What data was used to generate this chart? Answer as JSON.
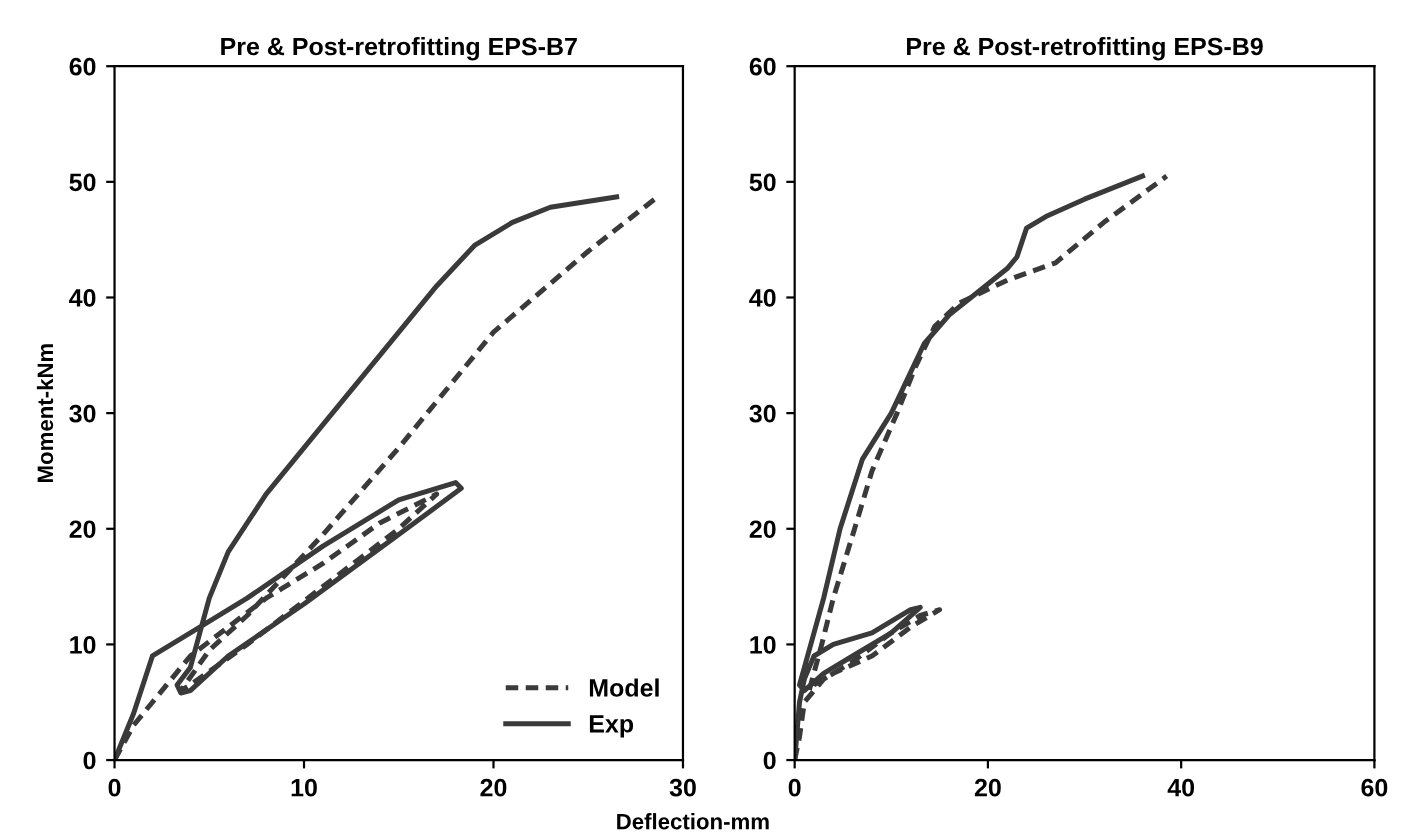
{
  "chart_data": [
    {
      "type": "line",
      "title": "Pre & Post-retrofitting EPS-B7",
      "xlabel": "Deflection-mm",
      "ylabel": "Moment-kNm",
      "xlim": [
        0,
        30
      ],
      "xticks": [
        0,
        10,
        20,
        30
      ],
      "ylim": [
        0,
        60
      ],
      "yticks": [
        0,
        10,
        20,
        30,
        40,
        50,
        60
      ],
      "grid": false,
      "legend": "bottom right",
      "series": [
        {
          "name": "Model",
          "color": "#3a3a3a",
          "line_style": "dashed",
          "x": [
            0,
            1,
            2,
            3,
            4,
            6,
            8,
            11,
            14,
            17,
            15,
            11,
            7,
            4,
            3.5,
            5,
            7,
            9,
            11,
            15,
            20,
            25,
            28.5
          ],
          "values": [
            0,
            3,
            5,
            7,
            9,
            11.5,
            14,
            17,
            20.5,
            23,
            20,
            15,
            10,
            6.5,
            6,
            9.5,
            12.5,
            16,
            19.5,
            27,
            37,
            44,
            48.5
          ]
        },
        {
          "name": "Exp",
          "color": "#3a3a3a",
          "line_style": "solid",
          "x": [
            0,
            1,
            2,
            3,
            4,
            7,
            11,
            15,
            18,
            18.3,
            15,
            10,
            6,
            4,
            3.5,
            3.3,
            4,
            4.5,
            5,
            6,
            8,
            11,
            14,
            17,
            19,
            21,
            23,
            26.5
          ],
          "values": [
            0,
            4,
            9,
            10,
            11,
            14,
            18.5,
            22.5,
            24,
            23.5,
            19.5,
            13.5,
            9,
            6,
            5.8,
            6.5,
            8,
            11,
            14,
            18,
            23,
            29,
            35,
            41,
            44.5,
            46.5,
            47.8,
            48.7
          ]
        }
      ]
    },
    {
      "type": "line",
      "title": "Pre & Post-retrofitting EPS-B9",
      "xlim": [
        0,
        60
      ],
      "xticks": [
        0,
        20,
        40,
        60
      ],
      "ylim": [
        0,
        60
      ],
      "yticks": [
        0,
        10,
        20,
        30,
        40,
        50,
        60
      ],
      "grid": false,
      "legend": false,
      "series": [
        {
          "color": "#3a3a3a",
          "line_style": "dashed",
          "x": [
            0,
            0.5,
            1,
            3,
            6,
            10,
            13,
            15,
            12,
            8,
            4,
            2,
            1.5,
            2.8,
            4,
            6.2,
            8,
            10.6,
            12.5,
            14.5,
            17,
            22,
            27,
            32,
            38.5
          ],
          "values": [
            0,
            2,
            5,
            7,
            8.5,
            11,
            12.5,
            13,
            11.5,
            9,
            7.5,
            6.5,
            6,
            10,
            14,
            20,
            25,
            30,
            34,
            37.5,
            39.5,
            41.5,
            43,
            46.5,
            50.5
          ]
        },
        {
          "color": "#3a3a3a",
          "line_style": "solid",
          "x": [
            0,
            0.5,
            1,
            2,
            4,
            8,
            12,
            13,
            10,
            6,
            3,
            1,
            0.5,
            1,
            2,
            3,
            4.7,
            7,
            10,
            13.4,
            16,
            19,
            22,
            23,
            24,
            26,
            30,
            36
          ],
          "values": [
            0,
            5,
            7,
            9,
            10,
            11,
            13,
            13.2,
            11,
            9,
            7.5,
            6,
            6.5,
            8,
            11,
            14,
            20,
            26,
            30,
            36,
            38.5,
            40.5,
            42.5,
            43.5,
            46,
            47,
            48.5,
            50.5
          ]
        }
      ]
    }
  ]
}
